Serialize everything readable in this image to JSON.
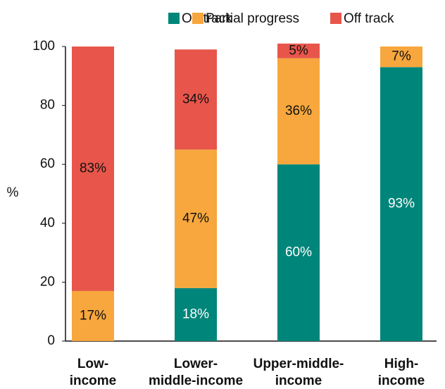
{
  "chart_data": {
    "type": "stacked-bar",
    "y_label": "%",
    "categories": [
      [
        "Low-",
        "income"
      ],
      [
        "Lower-",
        "middle-income"
      ],
      [
        "Upper-middle-",
        "income"
      ],
      [
        "High-",
        "income"
      ]
    ],
    "series": [
      {
        "name": "On track",
        "color": "#00857a",
        "label_color": "#ffffff",
        "values": [
          0,
          18,
          60,
          93
        ],
        "value_labels": [
          null,
          "18%",
          "60%",
          "93%"
        ]
      },
      {
        "name": "Partial progress",
        "color": "#f7a73d",
        "label_color": "#111111",
        "values": [
          17,
          47,
          36,
          7
        ],
        "value_labels": [
          "17%",
          "47%",
          "36%",
          "7%"
        ]
      },
      {
        "name": "Off track",
        "color": "#e8564b",
        "label_color": "#111111",
        "values": [
          83,
          34,
          5,
          0
        ],
        "value_labels": [
          "83%",
          "34%",
          "5%",
          null
        ]
      }
    ],
    "ylim": [
      0,
      100
    ],
    "yticks": [
      0,
      20,
      40,
      60,
      80,
      100
    ]
  }
}
